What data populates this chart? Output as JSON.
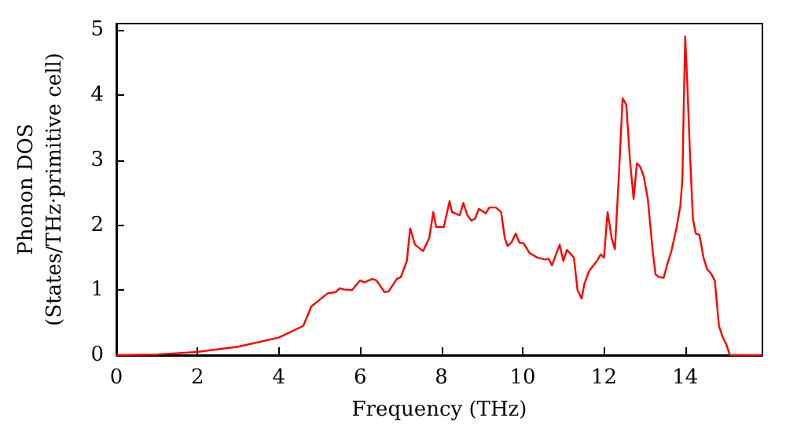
{
  "chart_data": {
    "type": "line",
    "xlabel": "Frequency (THz)",
    "ylabel": "Phonon DOS\n(States/THz·primitive cell)",
    "xlim": [
      0,
      15.9
    ],
    "ylim": [
      0,
      5.1
    ],
    "xticks": [
      0,
      2,
      4,
      6,
      8,
      10,
      12,
      14
    ],
    "yticks": [
      0,
      1,
      2,
      3,
      4,
      5
    ],
    "marker": "none",
    "line_style": "solid",
    "series": [
      {
        "color": "#ff0000",
        "x": [
          0,
          1,
          2,
          3,
          4,
          4.6,
          4.8,
          5.0,
          5.2,
          5.4,
          5.5,
          5.6,
          5.8,
          6.0,
          6.1,
          6.3,
          6.4,
          6.6,
          6.7,
          6.9,
          7.0,
          7.15,
          7.23,
          7.35,
          7.55,
          7.7,
          7.8,
          7.87,
          8.06,
          8.2,
          8.26,
          8.45,
          8.54,
          8.64,
          8.74,
          8.83,
          8.92,
          9.09,
          9.18,
          9.34,
          9.47,
          9.56,
          9.63,
          9.72,
          9.83,
          9.92,
          10.02,
          10.17,
          10.36,
          10.55,
          10.64,
          10.72,
          10.91,
          11.0,
          11.09,
          11.26,
          11.35,
          11.45,
          11.52,
          11.64,
          11.83,
          11.92,
          12.0,
          12.09,
          12.19,
          12.27,
          12.37,
          12.46,
          12.55,
          12.64,
          12.73,
          12.81,
          12.89,
          12.98,
          13.08,
          13.2,
          13.27,
          13.36,
          13.47,
          13.56,
          13.66,
          13.79,
          13.88,
          13.93,
          13.96,
          14.0,
          14.05,
          14.13,
          14.19,
          14.26,
          14.35,
          14.45,
          14.54,
          14.64,
          14.73,
          14.83,
          14.92,
          15.02,
          15.1,
          15.85
        ],
        "values": [
          0,
          0.01,
          0.05,
          0.13,
          0.27,
          0.45,
          0.75,
          0.85,
          0.95,
          0.97,
          1.03,
          1.01,
          1.0,
          1.15,
          1.12,
          1.17,
          1.15,
          0.97,
          0.98,
          1.17,
          1.2,
          1.45,
          1.95,
          1.7,
          1.6,
          1.8,
          2.2,
          1.97,
          1.97,
          2.37,
          2.2,
          2.15,
          2.34,
          2.15,
          2.07,
          2.1,
          2.25,
          2.18,
          2.27,
          2.27,
          2.2,
          1.8,
          1.68,
          1.73,
          1.87,
          1.73,
          1.72,
          1.57,
          1.5,
          1.47,
          1.48,
          1.38,
          1.7,
          1.45,
          1.62,
          1.5,
          1.0,
          0.87,
          1.1,
          1.3,
          1.45,
          1.55,
          1.5,
          2.2,
          1.8,
          1.63,
          2.8,
          3.95,
          3.85,
          3.0,
          2.4,
          2.95,
          2.9,
          2.75,
          2.4,
          1.6,
          1.24,
          1.2,
          1.19,
          1.4,
          1.6,
          1.97,
          2.3,
          2.7,
          3.7,
          4.9,
          4.2,
          2.9,
          2.1,
          1.87,
          1.85,
          1.5,
          1.32,
          1.25,
          1.14,
          0.45,
          0.28,
          0.15,
          0,
          0
        ]
      }
    ]
  }
}
